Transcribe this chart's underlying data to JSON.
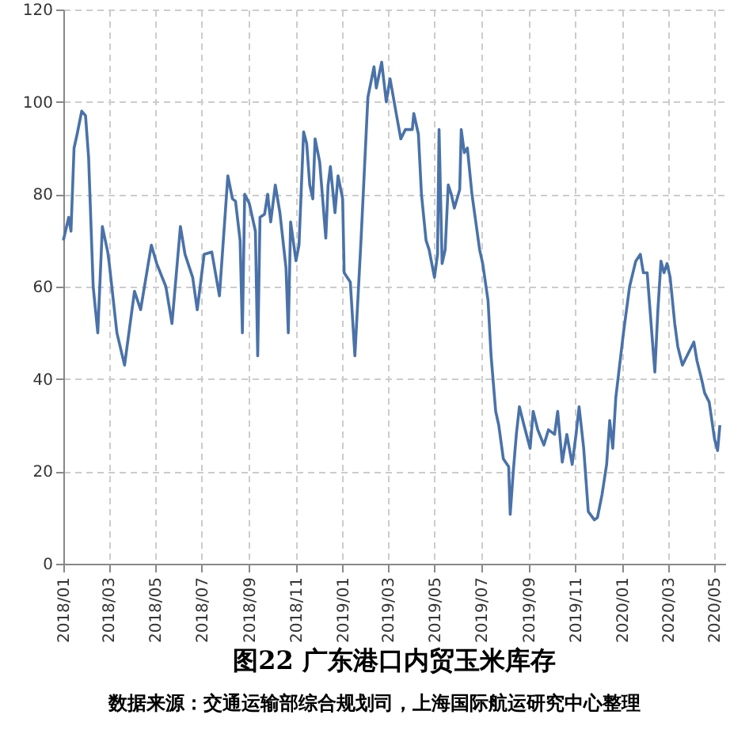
{
  "chart_data": {
    "type": "line",
    "title": "图22 广东港口内贸玉米库存",
    "annotations": [
      "数据来源：交通运输部综合规划司，上海国际航运研究中心整理"
    ],
    "x": [
      "2018-01-01",
      "2018-01-08",
      "2018-01-11",
      "2018-01-15",
      "2018-01-19",
      "2018-01-25",
      "2018-01-30",
      "2018-02-03",
      "2018-02-09",
      "2018-02-15",
      "2018-02-21",
      "2018-02-28",
      "2018-03-02",
      "2018-03-12",
      "2018-03-22",
      "2018-04-04",
      "2018-04-12",
      "2018-04-26",
      "2018-05-03",
      "2018-05-15",
      "2018-05-23",
      "2018-06-03",
      "2018-06-09",
      "2018-06-19",
      "2018-06-25",
      "2018-07-04",
      "2018-07-14",
      "2018-07-24",
      "2018-08-04",
      "2018-08-10",
      "2018-08-14",
      "2018-08-20",
      "2018-08-23",
      "2018-08-26",
      "2018-09-01",
      "2018-09-09",
      "2018-09-12",
      "2018-09-15",
      "2018-09-21",
      "2018-09-25",
      "2018-09-29",
      "2018-10-05",
      "2018-10-11",
      "2018-10-19",
      "2018-10-22",
      "2018-10-25",
      "2018-11-01",
      "2018-11-05",
      "2018-11-11",
      "2018-11-15",
      "2018-11-19",
      "2018-11-23",
      "2018-11-26",
      "2018-12-02",
      "2018-12-10",
      "2018-12-13",
      "2018-12-16",
      "2018-12-22",
      "2018-12-26",
      "2019-01-01",
      "2019-01-03",
      "2019-01-11",
      "2019-01-17",
      "2019-01-25",
      "2019-02-03",
      "2019-02-11",
      "2019-02-14",
      "2019-02-21",
      "2019-02-27",
      "2019-03-04",
      "2019-03-12",
      "2019-03-18",
      "2019-03-24",
      "2019-04-02",
      "2019-04-04",
      "2019-04-10",
      "2019-04-14",
      "2019-04-20",
      "2019-04-24",
      "2019-05-01",
      "2019-05-05",
      "2019-05-07",
      "2019-05-11",
      "2019-05-15",
      "2019-05-19",
      "2019-05-23",
      "2019-05-27",
      "2019-06-03",
      "2019-06-05",
      "2019-06-09",
      "2019-06-13",
      "2019-06-19",
      "2019-06-29",
      "2019-07-03",
      "2019-07-10",
      "2019-07-14",
      "2019-07-20",
      "2019-07-24",
      "2019-07-30",
      "2019-08-06",
      "2019-08-08",
      "2019-08-12",
      "2019-08-16",
      "2019-08-20",
      "2019-08-26",
      "2019-09-03",
      "2019-09-07",
      "2019-09-13",
      "2019-09-21",
      "2019-09-27",
      "2019-10-05",
      "2019-10-09",
      "2019-10-15",
      "2019-10-21",
      "2019-10-28",
      "2019-11-02",
      "2019-11-06",
      "2019-11-12",
      "2019-11-18",
      "2019-11-26",
      "2019-11-30",
      "2019-12-06",
      "2019-12-12",
      "2019-12-16",
      "2019-12-20",
      "2019-12-24",
      "2020-01-03",
      "2020-01-11",
      "2020-01-19",
      "2020-01-25",
      "2020-01-29",
      "2020-02-03",
      "2020-02-09",
      "2020-02-13",
      "2020-02-17",
      "2020-02-21",
      "2020-02-25",
      "2020-02-29",
      "2020-03-04",
      "2020-03-10",
      "2020-03-14",
      "2020-03-20",
      "2020-03-26",
      "2020-04-04",
      "2020-04-08",
      "2020-04-14",
      "2020-04-18",
      "2020-04-24",
      "2020-05-01",
      "2020-05-05",
      "2020-05-08"
    ],
    "series": [
      {
        "color": "#4a72a8",
        "values": [
          70,
          75,
          72,
          90,
          93,
          98,
          97,
          88,
          60,
          50,
          73,
          67.5,
          65,
          50,
          43,
          59,
          55,
          69,
          65,
          60,
          52,
          73,
          67,
          62,
          55,
          67,
          67.5,
          58,
          84,
          79,
          78.5,
          70,
          50,
          80,
          78,
          72,
          45,
          75,
          75.7,
          80,
          74,
          82,
          76,
          64,
          50,
          74,
          65.6,
          69,
          93.5,
          91,
          82,
          79,
          92,
          87,
          70.5,
          82,
          86,
          76,
          84,
          79,
          63,
          61,
          45,
          70,
          101,
          107.6,
          103,
          108.6,
          100,
          105,
          97.5,
          92,
          94,
          94,
          97.5,
          93,
          80,
          70,
          68,
          62,
          67,
          94,
          65,
          68,
          82,
          80,
          77,
          81,
          94,
          89,
          90,
          80,
          68,
          65,
          57,
          45,
          33,
          30,
          22.7,
          21,
          10.7,
          20,
          28,
          34,
          30,
          25,
          33,
          29,
          25.7,
          29,
          28,
          33,
          22,
          28,
          21.5,
          28,
          34,
          25,
          11.3,
          9.5,
          10,
          15,
          21.5,
          31,
          25,
          36,
          50,
          60,
          65.5,
          67,
          63,
          63,
          50,
          41.5,
          55,
          65.5,
          63,
          65,
          62,
          52,
          47,
          43,
          45,
          48,
          44,
          40,
          37,
          35,
          27,
          24.5,
          30
        ]
      }
    ],
    "xlim": [
      "2018-01-01",
      "2020-05-15"
    ],
    "xticks": [
      {
        "value": "2018-01",
        "label": "2018/01"
      },
      {
        "value": "2018-03",
        "label": "2018/03"
      },
      {
        "value": "2018-05",
        "label": "2018/05"
      },
      {
        "value": "2018-07",
        "label": "2018/07"
      },
      {
        "value": "2018-09",
        "label": "2018/09"
      },
      {
        "value": "2018-11",
        "label": "2018/11"
      },
      {
        "value": "2019-01",
        "label": "2019/01"
      },
      {
        "value": "2019-03",
        "label": "2019/03"
      },
      {
        "value": "2019-05",
        "label": "2019/05"
      },
      {
        "value": "2019-07",
        "label": "2019/07"
      },
      {
        "value": "2019-09",
        "label": "2019/09"
      },
      {
        "value": "2019-11",
        "label": "2019/11"
      },
      {
        "value": "2020-01",
        "label": "2020/01"
      },
      {
        "value": "2020-03",
        "label": "2020/03"
      },
      {
        "value": "2020-05",
        "label": "2020/05"
      }
    ],
    "ylim": [
      0,
      120
    ],
    "yticks": [
      0,
      20,
      40,
      60,
      80,
      100,
      120
    ],
    "grid": true,
    "line_style": "solid"
  }
}
